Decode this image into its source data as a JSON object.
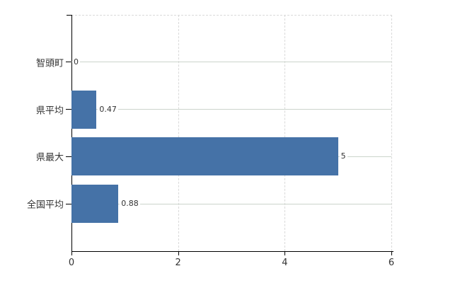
{
  "chart_data": {
    "type": "bar",
    "orientation": "horizontal",
    "title": "",
    "xlabel": "",
    "ylabel": "",
    "categories": [
      "智頭町",
      "県平均",
      "県最大",
      "全国平均"
    ],
    "values": [
      0,
      0.47,
      5,
      0.88
    ],
    "value_labels": [
      "0",
      "0.47",
      "5",
      "0.88"
    ],
    "xlim": [
      0,
      6
    ],
    "x_ticks": [
      0,
      2,
      4,
      6
    ],
    "legend": "none",
    "grid": true
  },
  "style": {
    "bar_color": "#4572a7",
    "row_line_color": "#ccd4cc",
    "dashed_line_color": "#d9d9d9",
    "axis_color": "#000000",
    "text_color": "#333333",
    "background_color": "#ffffff"
  }
}
